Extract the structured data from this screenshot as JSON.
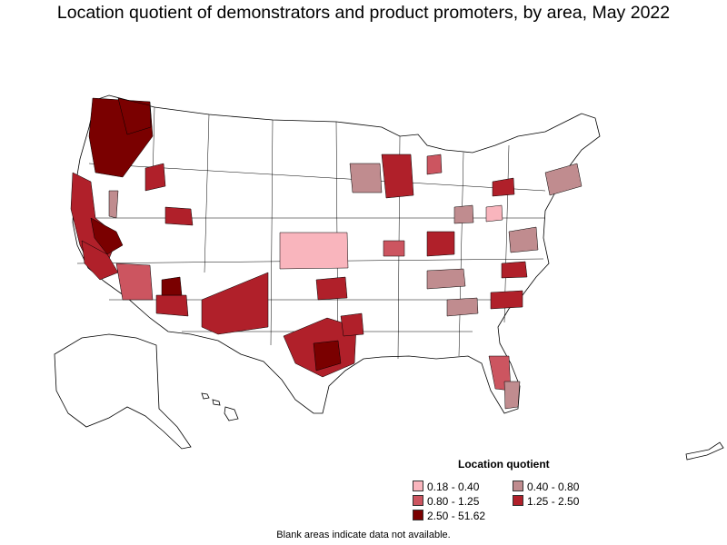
{
  "title": "Location quotient of demonstrators and product promoters, by area, May 2022",
  "legend": {
    "title": "Location quotient",
    "items": [
      {
        "label": "0.18 - 0.40",
        "color": "#f9b5bd"
      },
      {
        "label": "0.40 - 0.80",
        "color": "#c08c8f"
      },
      {
        "label": "0.80 - 1.25",
        "color": "#cc5560"
      },
      {
        "label": "1.25 - 2.50",
        "color": "#b0202a"
      },
      {
        "label": "2.50 - 51.62",
        "color": "#7a0000"
      }
    ]
  },
  "footnote": "Blank areas indicate data not available.",
  "map_colors": {
    "no_data": "#ffffff",
    "border": "#000000"
  }
}
